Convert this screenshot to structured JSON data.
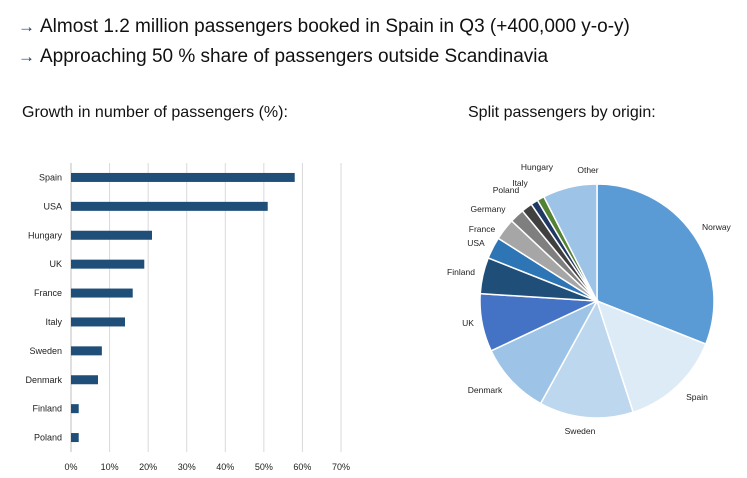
{
  "bullets": [
    {
      "arrow": "→",
      "text": "Almost 1.2 million passengers booked in Spain in Q3 (+400,000 y-o-y)"
    },
    {
      "arrow": "→",
      "text": "Approaching 50 % share of passengers outside Scandinavia"
    }
  ],
  "chart_data": [
    {
      "type": "bar",
      "orientation": "horizontal",
      "title": "Growth in number of passengers (%):",
      "categories": [
        "Spain",
        "USA",
        "Hungary",
        "UK",
        "France",
        "Italy",
        "Sweden",
        "Denmark",
        "Finland",
        "Poland"
      ],
      "values": [
        58,
        51,
        21,
        19,
        16,
        14,
        8,
        7,
        2,
        2
      ],
      "xlim": [
        0,
        70
      ],
      "xticks": [
        "0%",
        "10%",
        "20%",
        "30%",
        "40%",
        "50%",
        "60%",
        "70%"
      ],
      "grid": true,
      "color": "#1f4e79"
    },
    {
      "type": "pie",
      "title": "Split passengers by origin:",
      "labels": [
        "Norway",
        "Spain",
        "Sweden",
        "Denmark",
        "UK",
        "Finland",
        "USA",
        "France",
        "Germany",
        "Poland",
        "Italy",
        "Hungary",
        "Other"
      ],
      "values": [
        31,
        14,
        13,
        10,
        8,
        5,
        3,
        3,
        2,
        1.5,
        1,
        1,
        7.5
      ],
      "colors": [
        "#5b9bd5",
        "#ddebf7",
        "#bdd7ee",
        "#9dc3e6",
        "#4472c4",
        "#1f4e79",
        "#2e75b6",
        "#a6a6a6",
        "#7f7f7f",
        "#404040",
        "#203864",
        "#548235",
        "#9dc3e6"
      ]
    }
  ]
}
